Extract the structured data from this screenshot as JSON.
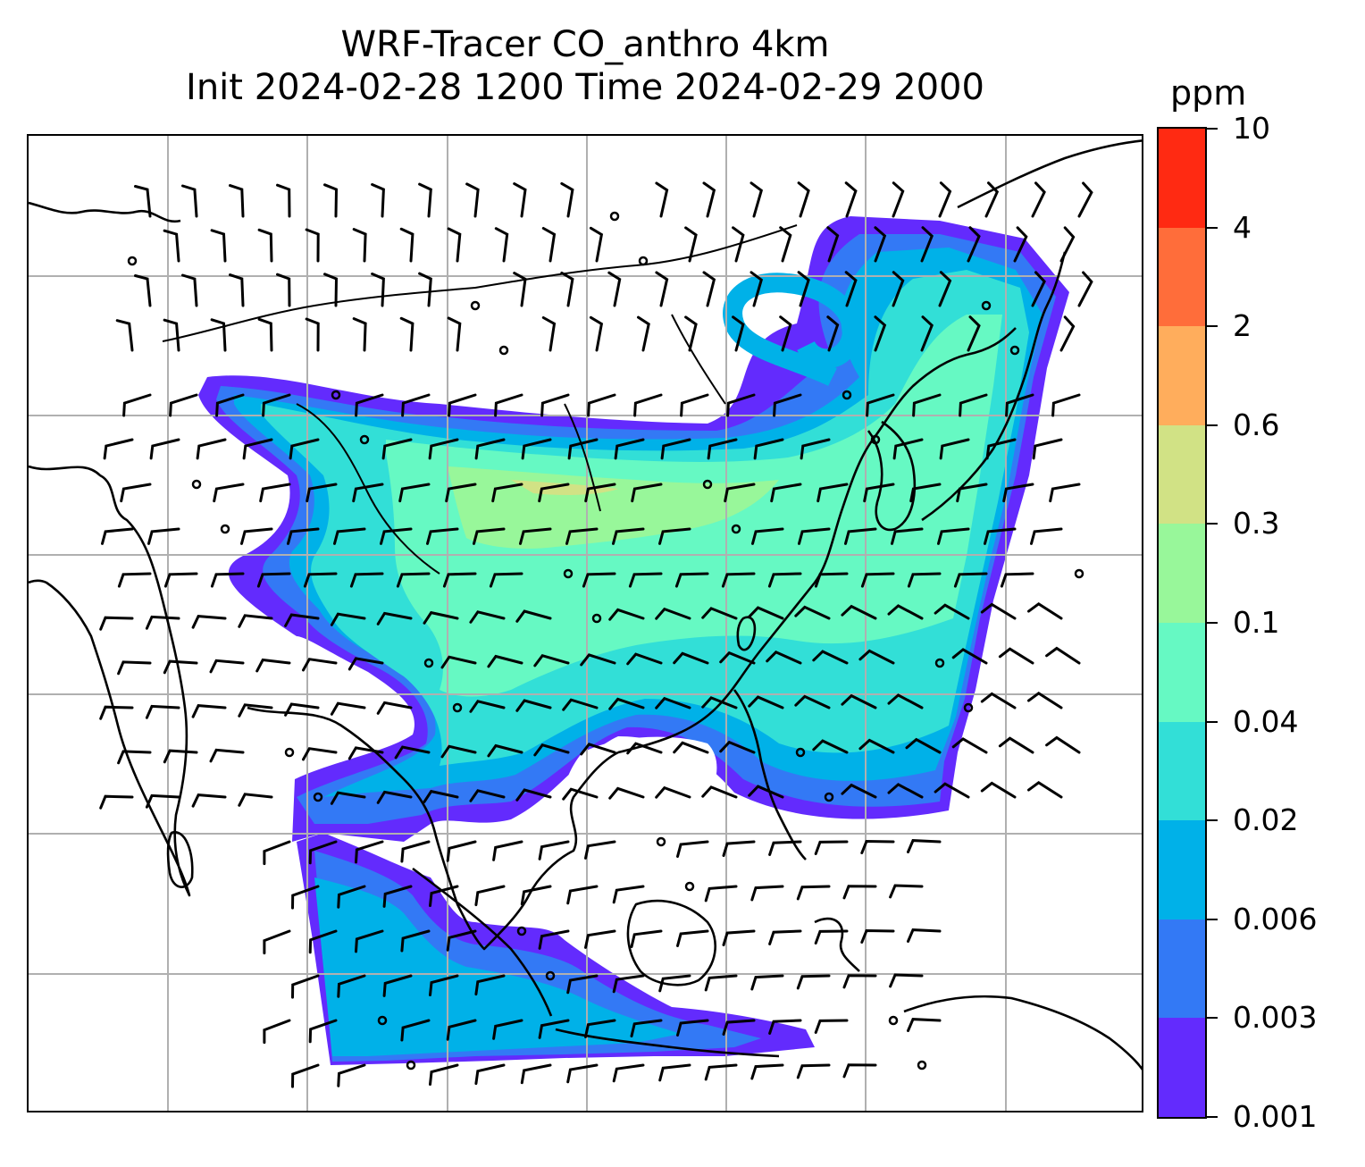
{
  "title": {
    "line1": "WRF-Tracer CO_anthro 4km",
    "line2": "Init 2024-02-28 1200 Time 2024-02-29 2000"
  },
  "colorbar": {
    "unit": "ppm",
    "ticks": [
      "10",
      "4",
      "2",
      "0.6",
      "0.3",
      "0.1",
      "0.04",
      "0.02",
      "0.006",
      "0.003",
      "0.001"
    ],
    "bands_top_to_bottom": [
      "#ff2a12",
      "#ff6d3a",
      "#ffad5c",
      "#d1e285",
      "#98f79a",
      "#66f9c3",
      "#32dfd7",
      "#00b1e8",
      "#3379f5",
      "#632bfd"
    ]
  },
  "map": {
    "field_colors": {
      "lowest": "#632bfd",
      "low": "#3379f5",
      "mid_low": "#00b1e8",
      "mid": "#32dfd7",
      "mid_high": "#66f9c3",
      "high": "#98f79a",
      "peak": "#d1e285"
    },
    "coastline_color": "#000000",
    "gridline_color": "#b0b0b0",
    "wind_barb_color": "#000000"
  }
}
